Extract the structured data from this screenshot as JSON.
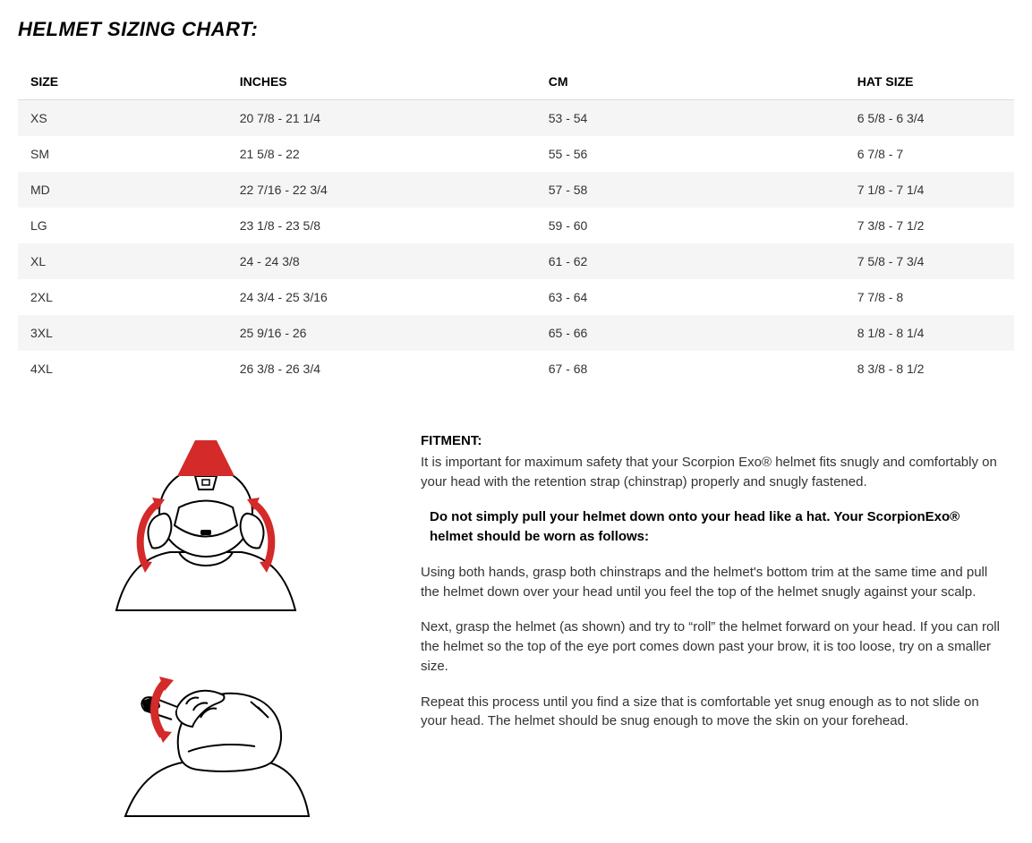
{
  "title": "HELMET SIZING CHART:",
  "table": {
    "columns": [
      "SIZE",
      "INCHES",
      "CM",
      "HAT SIZE"
    ],
    "rows": [
      [
        "XS",
        "20 7/8 - 21 1/4",
        "53 - 54",
        "6 5/8 - 6 3/4"
      ],
      [
        "SM",
        "21 5/8 - 22",
        "55 - 56",
        "6 7/8 - 7"
      ],
      [
        "MD",
        "22 7/16 - 22 3/4",
        "57 - 58",
        "7 1/8 - 7 1/4"
      ],
      [
        "LG",
        "23 1/8 - 23 5/8",
        "59 - 60",
        "7 3/8 - 7 1/2"
      ],
      [
        "XL",
        "24 - 24 3/8",
        "61 - 62",
        "7 5/8 - 7 3/4"
      ],
      [
        "2XL",
        "24 3/4 - 25 3/16",
        "63 - 64",
        "7 7/8 - 8"
      ],
      [
        "3XL",
        "25 9/16 - 26",
        "65 - 66",
        "8 1/8 - 8 1/4"
      ],
      [
        "4XL",
        "26 3/8 - 26 3/4",
        "67 - 68",
        "8 3/8 - 8 1/2"
      ]
    ]
  },
  "fitment": {
    "heading": "FITMENT:",
    "intro": "It is important for maximum safety that your Scorpion Exo® helmet fits snugly and comfortably on your head with the retention strap (chinstrap) properly and snugly fastened.",
    "bold_note": "Do not simply pull your helmet down onto your head like a hat. Your ScorpionExo® helmet should be worn as follows:",
    "p1": "Using both hands, grasp both chinstraps and the helmet's bottom trim at the same time and pull the helmet down over your head until you feel the top of the helmet snugly against your scalp.",
    "p2": "Next, grasp the helmet (as shown) and try to “roll” the helmet forward on your head. If you can roll the helmet so the top of the eye port comes down past your brow, it is too loose, try on a smaller size.",
    "p3": "Repeat this process until you find a size that is comfortable yet snug enough as to not slide on your head. The helmet should be snug enough to move the skin on your forehead."
  },
  "colors": {
    "arrow": "#d42a2a",
    "line": "#000000",
    "bg": "#ffffff",
    "row_alt": "#f5f5f5"
  }
}
